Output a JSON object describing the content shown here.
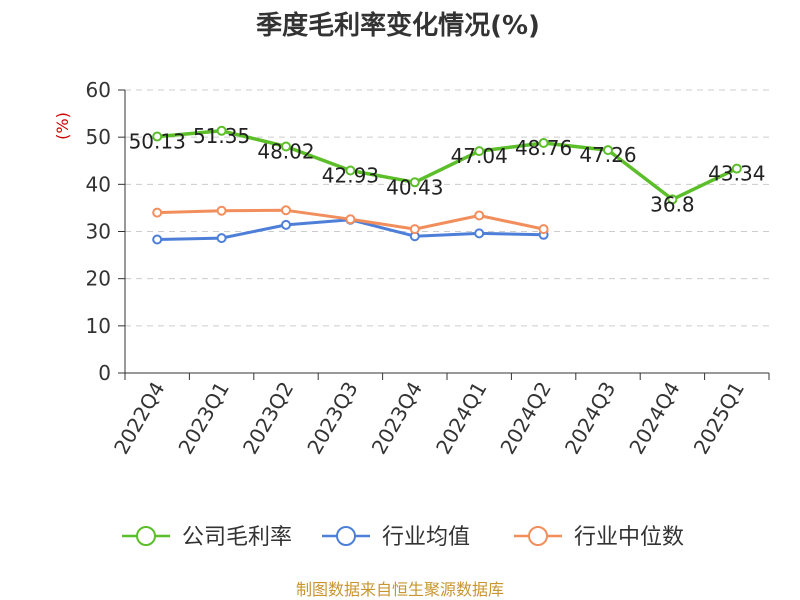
{
  "chart_data": {
    "type": "line",
    "title": "季度毛利率变化情况(%)",
    "ylabel": "(%)",
    "ylim": [
      0,
      60
    ],
    "yticks": [
      "0",
      "10",
      "20",
      "30",
      "40",
      "50",
      "60"
    ],
    "grid": true,
    "legend_position": "bottom",
    "categories": [
      "2022Q4",
      "2023Q1",
      "2023Q2",
      "2023Q3",
      "2023Q4",
      "2024Q1",
      "2024Q2",
      "2024Q3",
      "2024Q4",
      "2025Q1"
    ],
    "series": [
      {
        "name": "公司毛利率",
        "color": "#5cbf2a",
        "values": [
          50.13,
          51.35,
          48.02,
          42.93,
          40.43,
          47.04,
          48.76,
          47.26,
          36.8,
          43.34
        ],
        "data_labels": [
          "50.13",
          "51.35",
          "48.02",
          "42.93",
          "40.43",
          "47.04",
          "48.76",
          "47.26",
          "36.8",
          "43.34"
        ]
      },
      {
        "name": "行业均值",
        "color": "#4e7fd8",
        "values": [
          28.3,
          28.6,
          31.4,
          32.5,
          29.0,
          29.6,
          29.3,
          null,
          null,
          null
        ]
      },
      {
        "name": "行业中位数",
        "color": "#f28e5c",
        "values": [
          34.0,
          34.4,
          34.5,
          32.6,
          30.5,
          33.4,
          30.5,
          null,
          null,
          null
        ]
      }
    ]
  },
  "source": "制图数据来自恒生聚源数据库",
  "colors": {
    "axis": "#333333",
    "grid": "#cccccc",
    "ylabel": "#cc0000",
    "source": "#c8952f"
  }
}
